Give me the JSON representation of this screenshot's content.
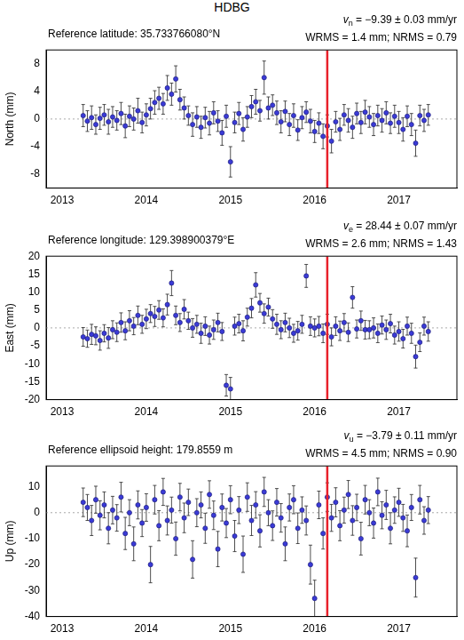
{
  "title": "HDBG",
  "chart_data": [
    {
      "type": "scatter",
      "y_label": "North (mm)",
      "annotations": {
        "reference": "Reference latitude: 35.733766080°N",
        "velocity": {
          "symbol": "v",
          "subscript": "n",
          "text": " = −9.39 ± 0.03 mm/yr"
        },
        "stats": "WRMS = 1.4 mm; NRMS = 0.79"
      },
      "x": [
        2013.25,
        2013.3,
        2013.35,
        2013.4,
        2013.45,
        2013.5,
        2013.55,
        2013.6,
        2013.65,
        2013.7,
        2013.75,
        2013.8,
        2013.85,
        2013.9,
        2013.95,
        2014,
        2014.05,
        2014.1,
        2014.15,
        2014.2,
        2014.25,
        2014.3,
        2014.35,
        2014.4,
        2014.45,
        2014.5,
        2014.55,
        2014.6,
        2014.65,
        2014.7,
        2014.75,
        2014.8,
        2014.85,
        2014.9,
        2014.95,
        2015,
        2015.05,
        2015.1,
        2015.15,
        2015.2,
        2015.25,
        2015.3,
        2015.35,
        2015.4,
        2015.45,
        2015.5,
        2015.55,
        2015.6,
        2015.65,
        2015.7,
        2015.75,
        2015.8,
        2015.85,
        2015.9,
        2015.95,
        2016,
        2016.05,
        2016.1,
        2016.15,
        2016.2,
        2016.25,
        2016.3,
        2016.35,
        2016.4,
        2016.45,
        2016.5,
        2016.55,
        2016.6,
        2016.65,
        2016.7,
        2016.75,
        2016.8,
        2016.85,
        2016.9,
        2016.95,
        2017,
        2017.05,
        2017.1,
        2017.15,
        2017.2,
        2017.25,
        2017.3,
        2017.35
      ],
      "values": [
        0.5,
        -0.3,
        0.2,
        -0.8,
        0.1,
        0.6,
        -0.4,
        0.3,
        -0.2,
        0.8,
        -1.0,
        0.4,
        0.0,
        1.2,
        -0.5,
        0.6,
        1.5,
        2.4,
        3.0,
        2.2,
        4.5,
        3.6,
        5.8,
        2.8,
        1.6,
        0.5,
        -0.8,
        0.3,
        -1.2,
        0.2,
        -0.6,
        0.9,
        -0.3,
        -2.0,
        0.4,
        -6.2,
        -0.5,
        0.8,
        -1.5,
        0.3,
        1.8,
        2.5,
        1.2,
        6.0,
        1.6,
        2.0,
        0.9,
        -0.4,
        1.1,
        -0.8,
        0.5,
        -1.6,
        0.2,
        1.0,
        -0.3,
        -1.8,
        -0.6,
        -2.5,
        -1.0,
        -3.2,
        -0.4,
        -1.5,
        0.6,
        -0.2,
        -1.2,
        0.8,
        -0.5,
        1.0,
        0.3,
        -0.8,
        0.5,
        -0.2,
        0.9,
        -0.6,
        0.4,
        -0.5,
        -1.5,
        0.4,
        -0.8,
        -3.5,
        0.5,
        -0.2,
        0.6
      ],
      "errors": [
        1.6,
        1.5,
        1.7,
        1.4,
        1.6,
        1.5,
        1.8,
        1.5,
        1.4,
        1.6,
        1.7,
        1.5,
        1.6,
        1.8,
        1.5,
        1.6,
        1.5,
        1.7,
        1.6,
        1.5,
        1.8,
        1.6,
        1.9,
        1.5,
        1.6,
        1.4,
        1.7,
        1.5,
        1.6,
        1.5,
        1.7,
        1.6,
        1.5,
        1.8,
        1.6,
        2.2,
        1.5,
        1.6,
        1.7,
        1.5,
        1.6,
        1.8,
        1.5,
        2.4,
        1.6,
        1.5,
        1.7,
        1.6,
        1.5,
        1.6,
        1.7,
        1.5,
        1.6,
        1.5,
        1.7,
        1.6,
        1.5,
        1.8,
        1.6,
        1.7,
        1.5,
        1.6,
        1.5,
        1.7,
        1.6,
        1.5,
        1.6,
        1.7,
        1.5,
        1.6,
        1.5,
        1.7,
        1.6,
        1.5,
        1.6,
        1.6,
        1.7,
        1.5,
        1.6,
        1.9,
        1.5,
        1.6,
        1.5
      ],
      "color": "#3a3ad6",
      "marker": "circle",
      "grid": false,
      "xlim": [
        2012.81,
        2017.69
      ],
      "xticks": [
        2013,
        2014,
        2015,
        2016,
        2017
      ],
      "ylim": [
        -10,
        10
      ],
      "yticks": [
        -8,
        -4,
        0,
        4,
        8
      ],
      "reference_lines": [
        {
          "axis": "y",
          "value": 0,
          "color": "#aaaaaa",
          "line_style": "dotted"
        },
        {
          "axis": "x",
          "value": 2016.15,
          "color": "#e8202a",
          "line_style": "solid"
        }
      ]
    },
    {
      "type": "scatter",
      "y_label": "East (mm)",
      "annotations": {
        "reference": "Reference longitude: 129.398900379°E",
        "velocity": {
          "symbol": "v",
          "subscript": "e",
          "text": " = 28.44 ± 0.07 mm/yr"
        },
        "stats": "WRMS = 2.6 mm; NRMS = 1.43"
      },
      "x": [
        2013.25,
        2013.3,
        2013.35,
        2013.4,
        2013.45,
        2013.5,
        2013.55,
        2013.6,
        2013.65,
        2013.7,
        2013.75,
        2013.8,
        2013.85,
        2013.9,
        2013.95,
        2014,
        2014.05,
        2014.1,
        2014.15,
        2014.2,
        2014.25,
        2014.3,
        2014.35,
        2014.4,
        2014.45,
        2014.5,
        2014.55,
        2014.6,
        2014.65,
        2014.7,
        2014.75,
        2014.8,
        2014.85,
        2014.9,
        2014.95,
        2015,
        2015.05,
        2015.1,
        2015.15,
        2015.2,
        2015.25,
        2015.3,
        2015.35,
        2015.4,
        2015.45,
        2015.5,
        2015.55,
        2015.6,
        2015.65,
        2015.7,
        2015.75,
        2015.8,
        2015.85,
        2015.9,
        2015.95,
        2016,
        2016.05,
        2016.1,
        2016.15,
        2016.2,
        2016.25,
        2016.3,
        2016.35,
        2016.4,
        2016.45,
        2016.5,
        2016.55,
        2016.6,
        2016.65,
        2016.7,
        2016.75,
        2016.8,
        2016.85,
        2016.9,
        2016.95,
        2017,
        2017.05,
        2017.1,
        2017.15,
        2017.2,
        2017.25,
        2017.3,
        2017.35
      ],
      "values": [
        -2.5,
        -3.0,
        -1.8,
        -2.2,
        -3.5,
        -1.5,
        -2.8,
        -0.5,
        -1.2,
        1.5,
        -0.8,
        2.0,
        0.5,
        3.5,
        1.0,
        2.5,
        4.0,
        3.2,
        5.0,
        2.8,
        6.5,
        12.5,
        3.5,
        1.5,
        5.2,
        2.0,
        0.0,
        1.0,
        -1.5,
        0.5,
        -2.0,
        -0.5,
        1.5,
        -1.0,
        -16.0,
        -17.0,
        0.5,
        1.2,
        -0.8,
        3.0,
        5.5,
        12.0,
        7.0,
        4.0,
        5.8,
        2.5,
        1.0,
        -0.5,
        1.5,
        0.0,
        -1.5,
        -0.8,
        1.0,
        14.5,
        0.5,
        0.0,
        0.5,
        -1.5,
        1.0,
        -2.5,
        0.5,
        -0.8,
        1.5,
        -1.2,
        8.5,
        -0.3,
        2.0,
        -0.5,
        -0.5,
        0.0,
        -1.5,
        0.8,
        -0.5,
        1.2,
        -2.0,
        -1.0,
        -3.0,
        0.5,
        -1.5,
        -8.0,
        -4.0,
        0.5,
        -1.0
      ],
      "errors": [
        2.6,
        2.4,
        2.8,
        2.5,
        2.7,
        2.4,
        2.9,
        2.5,
        2.6,
        2.7,
        2.5,
        2.8,
        2.4,
        2.6,
        2.5,
        2.7,
        2.5,
        2.8,
        2.6,
        2.5,
        2.9,
        3.5,
        2.6,
        2.5,
        2.7,
        2.4,
        2.6,
        2.5,
        2.8,
        2.6,
        2.5,
        2.7,
        2.6,
        2.5,
        3.0,
        3.2,
        2.5,
        2.6,
        2.8,
        2.5,
        2.7,
        3.4,
        2.6,
        2.7,
        2.5,
        2.6,
        2.8,
        2.5,
        2.6,
        2.7,
        2.5,
        2.6,
        2.5,
        3.2,
        2.6,
        2.5,
        2.7,
        2.6,
        2.8,
        2.5,
        2.6,
        2.7,
        2.5,
        2.6,
        3.0,
        2.5,
        2.7,
        2.6,
        2.5,
        2.8,
        2.6,
        2.5,
        2.7,
        2.6,
        2.5,
        2.7,
        2.6,
        2.5,
        2.8,
        3.2,
        2.6,
        2.5,
        2.7
      ],
      "color": "#3a3ad6",
      "marker": "circle",
      "grid": false,
      "xlim": [
        2012.81,
        2017.69
      ],
      "xticks": [
        2013,
        2014,
        2015,
        2016,
        2017
      ],
      "ylim": [
        -20,
        20
      ],
      "yticks": [
        -20,
        -15,
        -10,
        -5,
        0,
        5,
        10,
        15,
        20
      ],
      "reference_lines": [
        {
          "axis": "y",
          "value": 0,
          "color": "#aaaaaa",
          "line_style": "dotted"
        },
        {
          "axis": "x",
          "value": 2016.15,
          "color": "#e8202a",
          "line_style": "solid"
        }
      ]
    },
    {
      "type": "scatter",
      "y_label": "Up (mm)",
      "annotations": {
        "reference": "Reference ellipsoid height: 179.8559 m",
        "velocity": {
          "symbol": "v",
          "subscript": "u",
          "text": " = −3.79 ± 0.11 mm/yr"
        },
        "stats": "WRMS = 4.5 mm; NRMS = 0.90"
      },
      "x": [
        2013.25,
        2013.3,
        2013.35,
        2013.4,
        2013.45,
        2013.5,
        2013.55,
        2013.6,
        2013.65,
        2013.7,
        2013.75,
        2013.8,
        2013.85,
        2013.9,
        2013.95,
        2014,
        2014.05,
        2014.1,
        2014.15,
        2014.2,
        2014.25,
        2014.3,
        2014.35,
        2014.4,
        2014.45,
        2014.5,
        2014.55,
        2014.6,
        2014.65,
        2014.7,
        2014.75,
        2014.8,
        2014.85,
        2014.9,
        2014.95,
        2015,
        2015.05,
        2015.1,
        2015.15,
        2015.2,
        2015.25,
        2015.3,
        2015.35,
        2015.4,
        2015.45,
        2015.5,
        2015.55,
        2015.6,
        2015.65,
        2015.7,
        2015.75,
        2015.8,
        2015.85,
        2015.9,
        2015.95,
        2016,
        2016.05,
        2016.1,
        2016.15,
        2016.2,
        2016.25,
        2016.3,
        2016.35,
        2016.4,
        2016.45,
        2016.5,
        2016.55,
        2016.6,
        2016.65,
        2016.7,
        2016.75,
        2016.8,
        2016.85,
        2016.9,
        2016.95,
        2017,
        2017.05,
        2017.1,
        2017.15,
        2017.2,
        2017.25,
        2017.3,
        2017.35
      ],
      "values": [
        4.0,
        2.0,
        -3.0,
        5.0,
        -1.0,
        3.0,
        -6.0,
        1.0,
        -2.0,
        6.0,
        -8.0,
        0.0,
        -12.0,
        3.0,
        -4.0,
        2.0,
        -20.0,
        5.0,
        -5.0,
        8.0,
        -3.0,
        1.0,
        -10.0,
        6.0,
        -2.0,
        4.0,
        -18.0,
        0.0,
        3.0,
        -6.0,
        7.0,
        -1.0,
        -14.0,
        2.0,
        -4.0,
        5.0,
        -9.0,
        1.0,
        -16.0,
        6.0,
        -3.0,
        3.0,
        -7.0,
        8.0,
        0.0,
        -5.0,
        4.0,
        -2.0,
        -12.0,
        2.0,
        5.0,
        -6.0,
        1.0,
        -3.0,
        -20.0,
        -33.0,
        3.0,
        -8.0,
        6.0,
        -2.0,
        4.0,
        -5.0,
        1.0,
        7.0,
        -3.0,
        2.0,
        -10.0,
        5.0,
        0.0,
        -4.0,
        8.0,
        -1.0,
        3.0,
        -6.0,
        1.0,
        4.0,
        -2.0,
        -7.0,
        2.0,
        -25.0,
        5.0,
        -3.0,
        1.0
      ],
      "errors": [
        5.5,
        5.0,
        5.8,
        5.2,
        5.6,
        5.0,
        6.0,
        5.3,
        5.1,
        5.7,
        6.2,
        5.0,
        6.5,
        5.4,
        5.2,
        5.3,
        7.0,
        5.5,
        5.8,
        5.2,
        5.6,
        5.0,
        6.4,
        5.3,
        5.7,
        5.1,
        7.2,
        5.4,
        5.0,
        5.8,
        5.3,
        5.5,
        6.8,
        5.2,
        5.6,
        5.4,
        6.0,
        5.2,
        7.0,
        5.5,
        5.8,
        5.1,
        6.2,
        5.6,
        5.0,
        5.7,
        5.3,
        5.5,
        6.5,
        5.2,
        5.4,
        5.9,
        5.1,
        5.6,
        7.5,
        7.0,
        5.3,
        6.0,
        5.5,
        5.2,
        5.6,
        5.8,
        5.0,
        5.4,
        5.7,
        5.1,
        6.3,
        5.5,
        5.0,
        5.8,
        5.3,
        5.2,
        5.6,
        6.0,
        5.1,
        5.4,
        5.2,
        6.1,
        5.0,
        7.5,
        5.5,
        5.3,
        5.2
      ],
      "color": "#3a3ad6",
      "marker": "circle",
      "grid": false,
      "xlim": [
        2012.81,
        2017.69
      ],
      "xticks": [
        2013,
        2014,
        2015,
        2016,
        2017
      ],
      "ylim": [
        -40,
        18
      ],
      "yticks": [
        -40,
        -30,
        -20,
        -10,
        0,
        10
      ],
      "reference_lines": [
        {
          "axis": "y",
          "value": 0,
          "color": "#aaaaaa",
          "line_style": "dotted"
        },
        {
          "axis": "x",
          "value": 2016.15,
          "color": "#e8202a",
          "line_style": "solid"
        }
      ]
    }
  ]
}
